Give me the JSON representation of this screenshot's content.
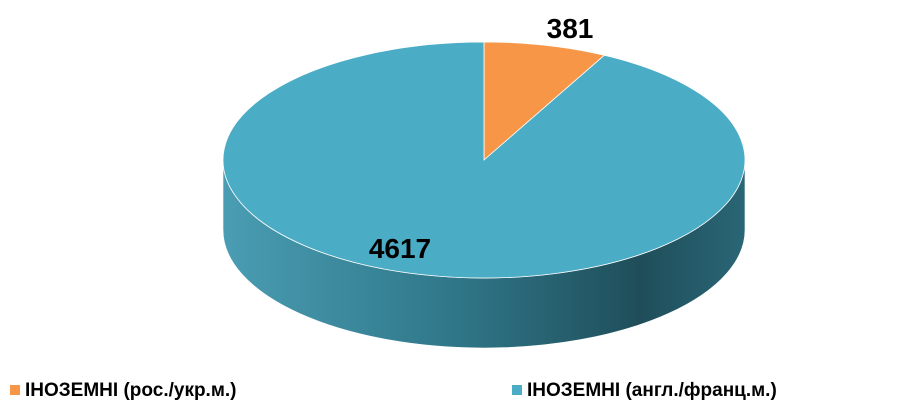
{
  "chart_data": {
    "type": "pie3d",
    "categories": [
      "ІНОЗЕМНІ (рос./укр.м.)",
      "ІНОЗЕМНІ (англ./франц.м.)"
    ],
    "values": [
      381,
      4617
    ],
    "colors": [
      "#f79646",
      "#4bacc6"
    ],
    "legend": "bottom"
  }
}
